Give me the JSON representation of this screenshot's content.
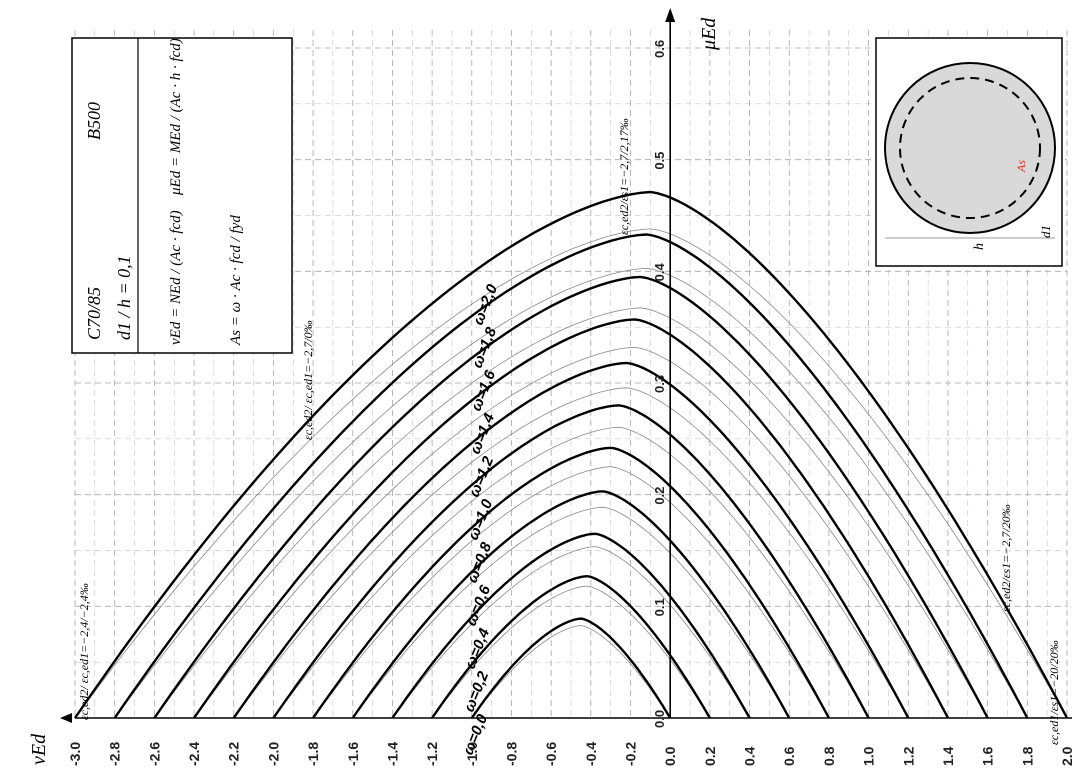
{
  "chart_data": {
    "type": "line",
    "title": "",
    "xlabel": "vEd",
    "ylabel": "μEd",
    "xlim": [
      -3.0,
      2.0
    ],
    "ylim": [
      0.0,
      0.6
    ],
    "x_ticks": [
      "-3.0",
      "-2.8",
      "-2.6",
      "-2.4",
      "-2.2",
      "-2.0",
      "-1.8",
      "-1.6",
      "-1.4",
      "-1.2",
      "-1.0",
      "-0.8",
      "-0.6",
      "-0.4",
      "-0.2",
      "0.0",
      "0.2",
      "0.4",
      "0.6",
      "0.8",
      "1.0",
      "1.2",
      "1.4",
      "1.6",
      "1.8",
      "2.0"
    ],
    "y_ticks": [
      "0.0",
      "0.1",
      "0.2",
      "0.3",
      "0.4",
      "0.5",
      "0.6"
    ],
    "grid": true,
    "series": [
      {
        "name": "ω=0,0",
        "peak_x": -0.45,
        "peak_y": 0.089,
        "x_left": -1.0,
        "x_right": 0.0
      },
      {
        "name": "ω=0,2",
        "peak_x": -0.42,
        "peak_y": 0.127,
        "x_left": -1.2,
        "x_right": 0.2
      },
      {
        "name": "ω=0,4",
        "peak_x": -0.38,
        "peak_y": 0.165,
        "x_left": -1.4,
        "x_right": 0.4
      },
      {
        "name": "ω=0,6",
        "peak_x": -0.34,
        "peak_y": 0.203,
        "x_left": -1.6,
        "x_right": 0.6
      },
      {
        "name": "ω=0,8",
        "peak_x": -0.3,
        "peak_y": 0.242,
        "x_left": -1.8,
        "x_right": 0.8
      },
      {
        "name": "ω=1,0",
        "peak_x": -0.26,
        "peak_y": 0.28,
        "x_left": -2.0,
        "x_right": 1.0
      },
      {
        "name": "ω=1,2",
        "peak_x": -0.22,
        "peak_y": 0.318,
        "x_left": -2.2,
        "x_right": 1.2
      },
      {
        "name": "ω=1,4",
        "peak_x": -0.18,
        "peak_y": 0.357,
        "x_left": -2.4,
        "x_right": 1.4
      },
      {
        "name": "ω=1,6",
        "peak_x": -0.15,
        "peak_y": 0.395,
        "x_left": -2.6,
        "x_right": 1.6
      },
      {
        "name": "ω=1,8",
        "peak_x": -0.12,
        "peak_y": 0.433,
        "x_left": -2.8,
        "x_right": 1.8
      },
      {
        "name": "ω=2,0",
        "peak_x": -0.1,
        "peak_y": 0.471,
        "x_left": -3.0,
        "x_right": 2.0
      }
    ],
    "legend": "inline"
  },
  "info_box": {
    "concrete": "C70/85",
    "steel": "B500",
    "ratio": "d1 / h = 0,1",
    "nu_formula": "vEd = NEd / (Ac · fcd)",
    "mu_formula": "μEd = MEd / (Ac · h · fcd)",
    "as_formula": "As = ω · Ac · fcd / fyd"
  },
  "section": {
    "as_label": "As",
    "h_label": "h",
    "d1_label": "d1"
  },
  "annotations": {
    "strain_top": "εc,ed2/εs1=−2,7/2,17‰",
    "strain_mid": "εc,ed2/ εc,ed1=−2,7/0‰",
    "strain_left": "εc,ed2/ εc,ed1=−2,4/−2,4‰",
    "strain_right_mid": "εc,ed2/εs1=−2,7/20‰",
    "strain_right_low": "εc,ed1/εs1=−20/20‰"
  },
  "colors": {
    "curve": "#000000",
    "grid": "#9a9a9a",
    "thin_curve": "#8a8a8a",
    "section_fill": "#d9d9d9",
    "as_red": "#e0301e"
  }
}
